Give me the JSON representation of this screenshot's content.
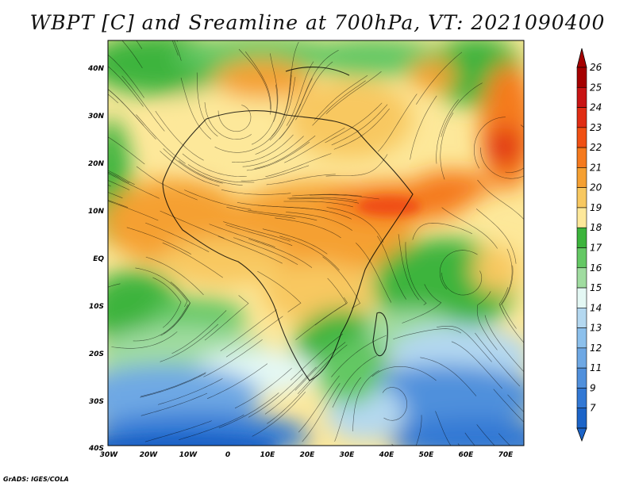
{
  "title": "WBPT [C] and Sreamline at 700hPa, VT: 2021090400",
  "credit": "GrADS: IGES/COLA",
  "map": {
    "lon_range": [
      -30,
      75
    ],
    "lat_range": [
      -40,
      45
    ],
    "lat_labels": [
      "40N",
      "30N",
      "20N",
      "10N",
      "EQ",
      "10S",
      "20S",
      "30S",
      "40S"
    ],
    "lon_labels": [
      "30W",
      "20W",
      "10W",
      "0",
      "10E",
      "20E",
      "30E",
      "40E",
      "50E",
      "60E",
      "70E"
    ]
  },
  "colorbar": {
    "labels": [
      "26",
      "25",
      "24",
      "23",
      "22",
      "21",
      "20",
      "19",
      "18",
      "17",
      "16",
      "15",
      "14",
      "13",
      "12",
      "11",
      "9",
      "7"
    ],
    "colors": [
      "#a50000",
      "#c81414",
      "#e02d14",
      "#f05014",
      "#f57a1e",
      "#f5a032",
      "#f8c860",
      "#fde89a",
      "#3cb43c",
      "#64c864",
      "#a0dca0",
      "#e4f8f4",
      "#b4d8f0",
      "#8cc0ec",
      "#6ea8e4",
      "#5090dc",
      "#3278d4",
      "#1c64c8"
    ]
  }
}
